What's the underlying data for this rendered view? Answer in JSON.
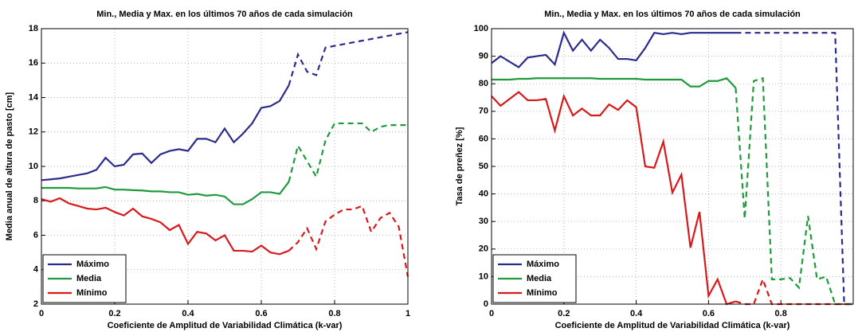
{
  "chart_data": [
    {
      "type": "line",
      "title": "Min., Media y Max. en los últimos 70 años de cada simulación",
      "x_label": "Coeficiente de Amplitud de Variabilidad Climática (k-var)",
      "y_label": "Media anual de altura de pasto [cm]",
      "x": [
        0,
        0.025,
        0.05,
        0.075,
        0.1,
        0.125,
        0.15,
        0.175,
        0.2,
        0.225,
        0.25,
        0.275,
        0.3,
        0.325,
        0.35,
        0.375,
        0.4,
        0.425,
        0.45,
        0.475,
        0.5,
        0.525,
        0.55,
        0.575,
        0.6,
        0.625,
        0.65,
        0.675,
        0.7,
        0.725,
        0.75,
        0.775,
        0.8,
        0.825,
        0.85,
        0.875,
        0.9,
        0.925,
        0.95,
        0.975,
        1
      ],
      "xlim": [
        0,
        1
      ],
      "xticks": [
        0,
        0.2,
        0.4,
        0.6,
        0.8,
        1
      ],
      "ylim": [
        2,
        18
      ],
      "yticks": [
        2,
        4,
        6,
        8,
        10,
        12,
        14,
        16,
        18
      ],
      "grid": true,
      "legend": "lower-left",
      "series": [
        {
          "name": "Máximo",
          "color": "#2b2b8c",
          "linestyle": "solid",
          "values": [
            9.2,
            9.25,
            9.3,
            9.4,
            9.5,
            9.6,
            9.8,
            10.5,
            10.0,
            10.1,
            10.7,
            10.75,
            10.2,
            10.7,
            10.9,
            11.0,
            10.9,
            11.6,
            11.6,
            11.4,
            12.2,
            11.4,
            11.9,
            12.5,
            13.4,
            13.5,
            13.8,
            14.7,
            null,
            null,
            null,
            null,
            null,
            null,
            null,
            null,
            null,
            null,
            null,
            null,
            null
          ]
        },
        {
          "name": "Media",
          "color": "#1f9a3c",
          "linestyle": "solid",
          "values": [
            8.75,
            8.75,
            8.75,
            8.75,
            8.72,
            8.72,
            8.72,
            8.8,
            8.65,
            8.65,
            8.62,
            8.6,
            8.55,
            8.55,
            8.5,
            8.5,
            8.35,
            8.4,
            8.3,
            8.35,
            8.25,
            7.8,
            7.8,
            8.1,
            8.5,
            8.5,
            8.4,
            9.1,
            null,
            null,
            null,
            null,
            null,
            null,
            null,
            null,
            null,
            null,
            null,
            null,
            null
          ]
        },
        {
          "name": "Mínimo",
          "color": "#d8191c",
          "linestyle": "solid",
          "values": [
            8.1,
            7.95,
            8.15,
            7.85,
            7.7,
            7.55,
            7.5,
            7.6,
            7.35,
            7.15,
            7.55,
            7.1,
            6.95,
            6.75,
            6.3,
            6.6,
            5.5,
            6.2,
            6.1,
            5.7,
            6.0,
            5.1,
            5.1,
            5.05,
            5.4,
            5.0,
            4.9,
            5.1,
            null,
            null,
            null,
            null,
            null,
            null,
            null,
            null,
            null,
            null,
            null,
            null,
            null
          ]
        },
        {
          "color": "#2b2b8c",
          "linestyle": "dashed",
          "values": [
            null,
            null,
            null,
            null,
            null,
            null,
            null,
            null,
            null,
            null,
            null,
            null,
            null,
            null,
            null,
            null,
            null,
            null,
            null,
            null,
            null,
            null,
            null,
            null,
            null,
            null,
            null,
            14.7,
            16.5,
            15.5,
            15.3,
            16.9,
            17.0,
            17.1,
            17.2,
            17.3,
            17.4,
            17.5,
            17.6,
            17.7,
            17.8
          ]
        },
        {
          "color": "#1f9a3c",
          "linestyle": "dashed",
          "values": [
            null,
            null,
            null,
            null,
            null,
            null,
            null,
            null,
            null,
            null,
            null,
            null,
            null,
            null,
            null,
            null,
            null,
            null,
            null,
            null,
            null,
            null,
            null,
            null,
            null,
            null,
            null,
            9.1,
            11.2,
            10.3,
            9.4,
            11.5,
            12.5,
            12.5,
            12.5,
            12.5,
            12.0,
            12.3,
            12.4,
            12.4,
            12.4
          ]
        },
        {
          "color": "#d8191c",
          "linestyle": "dashed",
          "values": [
            null,
            null,
            null,
            null,
            null,
            null,
            null,
            null,
            null,
            null,
            null,
            null,
            null,
            null,
            null,
            null,
            null,
            null,
            null,
            null,
            null,
            null,
            null,
            null,
            null,
            null,
            null,
            5.1,
            5.6,
            6.4,
            5.2,
            6.8,
            7.2,
            7.5,
            7.5,
            7.7,
            6.2,
            7.0,
            7.3,
            6.5,
            3.6
          ]
        }
      ]
    },
    {
      "type": "line",
      "title": "Min., Media y Max. en los últimos 70 años de cada simulación",
      "x_label": "Coeficiente de Amplitud de Variabilidad Climática (k-var)",
      "y_label": "Tasa de preñez [%]",
      "x": [
        0,
        0.025,
        0.05,
        0.075,
        0.1,
        0.125,
        0.15,
        0.175,
        0.2,
        0.225,
        0.25,
        0.275,
        0.3,
        0.325,
        0.35,
        0.375,
        0.4,
        0.425,
        0.45,
        0.475,
        0.5,
        0.525,
        0.55,
        0.575,
        0.6,
        0.625,
        0.65,
        0.675,
        0.7,
        0.725,
        0.75,
        0.775,
        0.8,
        0.825,
        0.85,
        0.875,
        0.9,
        0.925,
        0.95,
        0.975,
        1
      ],
      "xlim": [
        0,
        1
      ],
      "xticks": [
        0,
        0.2,
        0.4,
        0.6,
        0.8
      ],
      "ylim": [
        0,
        100
      ],
      "yticks": [
        0,
        10,
        20,
        30,
        40,
        50,
        60,
        70,
        80,
        90,
        100
      ],
      "grid": true,
      "legend": "lower-left",
      "series": [
        {
          "name": "Máximo",
          "color": "#2b2b8c",
          "linestyle": "solid",
          "values": [
            87.5,
            90,
            88,
            86,
            89.5,
            90,
            90.5,
            87,
            98.5,
            92,
            96,
            92,
            96,
            93,
            89,
            89,
            88.5,
            93,
            98.5,
            98,
            98.5,
            98,
            98.5,
            98.5,
            98.5,
            98.5,
            98.5,
            98.5,
            null,
            null,
            null,
            null,
            null,
            null,
            null,
            null,
            null,
            null,
            null,
            null,
            null
          ]
        },
        {
          "name": "Media",
          "color": "#1f9a3c",
          "linestyle": "solid",
          "values": [
            81.5,
            81.5,
            81.5,
            81.8,
            81.8,
            82,
            82,
            82,
            82,
            82,
            82,
            82,
            81.8,
            81.8,
            81.8,
            81.8,
            81.8,
            81.5,
            81.5,
            81.5,
            81.5,
            81.5,
            79,
            79,
            81,
            81,
            82,
            78.5,
            null,
            null,
            null,
            null,
            null,
            null,
            null,
            null,
            null,
            null,
            null,
            null,
            null
          ]
        },
        {
          "name": "Mínimo",
          "color": "#d8191c",
          "linestyle": "solid",
          "values": [
            75.5,
            72,
            74.5,
            77,
            74,
            74,
            74.5,
            63,
            75.5,
            68.5,
            71,
            68.5,
            68.5,
            72.5,
            70.5,
            74,
            71.5,
            50,
            49.5,
            59,
            40.5,
            47,
            20.5,
            33.5,
            3,
            9,
            0,
            1,
            null,
            null,
            null,
            null,
            null,
            null,
            null,
            null,
            null,
            null,
            null,
            null,
            null
          ]
        },
        {
          "color": "#2b2b8c",
          "linestyle": "dashed",
          "values": [
            null,
            null,
            null,
            null,
            null,
            null,
            null,
            null,
            null,
            null,
            null,
            null,
            null,
            null,
            null,
            null,
            null,
            null,
            null,
            null,
            null,
            null,
            null,
            null,
            null,
            null,
            null,
            98.5,
            98.5,
            98.5,
            98.5,
            98.5,
            98.5,
            98.5,
            98.5,
            98.5,
            98.5,
            98.5,
            98.5,
            0,
            0
          ]
        },
        {
          "color": "#1f9a3c",
          "linestyle": "dashed",
          "values": [
            null,
            null,
            null,
            null,
            null,
            null,
            null,
            null,
            null,
            null,
            null,
            null,
            null,
            null,
            null,
            null,
            null,
            null,
            null,
            null,
            null,
            null,
            null,
            null,
            null,
            null,
            null,
            78.5,
            31,
            81,
            82,
            9,
            9,
            9.5,
            6,
            32,
            9,
            10,
            0,
            0,
            0
          ]
        },
        {
          "color": "#d8191c",
          "linestyle": "dashed",
          "values": [
            null,
            null,
            null,
            null,
            null,
            null,
            null,
            null,
            null,
            null,
            null,
            null,
            null,
            null,
            null,
            null,
            null,
            null,
            null,
            null,
            null,
            null,
            null,
            null,
            null,
            null,
            null,
            1,
            0,
            0,
            9,
            0,
            0,
            0,
            0,
            0,
            0,
            0,
            0,
            0,
            0
          ]
        }
      ]
    }
  ]
}
